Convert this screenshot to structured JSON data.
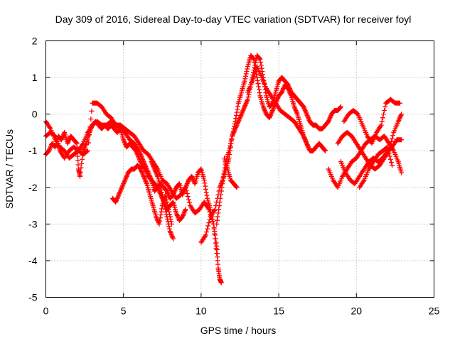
{
  "chart_data": {
    "type": "scatter",
    "title": "Day 309 of 2016, Sidereal Day-to-day VTEC variation (SDTVAR) for receiver foyl",
    "xlabel": "GPS time / hours",
    "ylabel": "SDTVAR / TECUs",
    "xlim": [
      0,
      25
    ],
    "ylim": [
      -5,
      2
    ],
    "xticks": [
      "0",
      "5",
      "10",
      "15",
      "20",
      "25"
    ],
    "yticks": [
      "2",
      "1",
      "0",
      "-1",
      "-2",
      "-3",
      "-4",
      "-5"
    ],
    "grid": true,
    "marker": "+",
    "color": "#ff0000",
    "series": [
      {
        "x": [
          0.0,
          0.2,
          0.4,
          0.6,
          0.8,
          1.0,
          1.2,
          1.4,
          1.6,
          1.8,
          2.0,
          2.1,
          2.2,
          2.4,
          2.6,
          2.8,
          3.0,
          3.2,
          3.4,
          3.6,
          3.8,
          4.0,
          4.2,
          4.4,
          4.6,
          4.8,
          5.0,
          5.2,
          5.4,
          5.6,
          5.8,
          6.0,
          6.2,
          6.4,
          6.6,
          6.8,
          7.0,
          7.2,
          7.4,
          7.6,
          7.8,
          8.0,
          8.2,
          8.4,
          8.6,
          8.8,
          9.0,
          9.2,
          9.4,
          9.6,
          9.8,
          10.0,
          10.2,
          10.4,
          10.6,
          10.8,
          11.0
        ],
        "y": [
          -1.1,
          -1.0,
          -0.8,
          -0.9,
          -0.6,
          -0.7,
          -0.5,
          -0.8,
          -0.6,
          -0.7,
          -0.8,
          -1.5,
          -1.7,
          -1.0,
          -0.8,
          -0.5,
          -0.3,
          -0.2,
          -0.3,
          -0.4,
          -0.3,
          -0.4,
          -0.3,
          -0.4,
          -0.5,
          -0.4,
          -0.7,
          -0.9,
          -0.8,
          -0.9,
          -1.0,
          -1.2,
          -1.4,
          -1.5,
          -1.7,
          -1.8,
          -2.1,
          -2.0,
          -1.9,
          -2.0,
          -2.1,
          -2.3,
          -2.2,
          -2.0,
          -1.9,
          -2.2,
          -2.0,
          -1.8,
          -1.7,
          -1.9,
          -1.6,
          -1.5,
          -1.8,
          -2.3,
          -2.6,
          -3.0,
          -3.8
        ]
      },
      {
        "x": [
          0.0,
          0.3,
          0.6,
          0.9,
          1.2,
          1.5,
          1.8,
          2.1,
          2.4,
          2.7,
          3.0,
          3.3,
          3.6,
          3.9,
          4.2,
          4.5,
          4.8,
          5.1,
          5.4,
          5.7,
          6.0,
          6.3,
          6.6,
          6.9,
          7.2,
          7.5,
          7.8,
          8.1,
          8.4,
          8.7,
          9.0,
          9.3,
          9.6,
          9.9,
          10.2,
          10.5,
          10.8,
          11.0,
          11.1,
          11.2,
          11.3
        ],
        "y": [
          -0.2,
          -0.4,
          -0.7,
          -1.0,
          -1.2,
          -1.0,
          -0.9,
          -1.0,
          -0.8,
          -0.5,
          -0.3,
          -0.2,
          -0.3,
          -0.3,
          -0.2,
          -0.3,
          -0.3,
          -0.4,
          -0.5,
          -0.6,
          -0.8,
          -1.0,
          -1.1,
          -1.3,
          -1.5,
          -1.8,
          -1.9,
          -2.1,
          -2.3,
          -2.2,
          -2.0,
          -2.5,
          -2.7,
          -2.6,
          -2.4,
          -2.6,
          -3.0,
          -3.6,
          -4.2,
          -4.5,
          -4.6
        ]
      },
      {
        "x": [
          0.0,
          0.3,
          0.6,
          0.9,
          1.2,
          1.5,
          1.8,
          2.1,
          2.4,
          2.7,
          3.0,
          3.3,
          3.6,
          3.9,
          4.2,
          4.5,
          4.8,
          5.1,
          5.4,
          5.7,
          6.0,
          6.2,
          6.4,
          6.6,
          6.8,
          7.0,
          7.2,
          7.4,
          7.6,
          7.8,
          8.0,
          8.2
        ],
        "y": [
          -0.6,
          -0.5,
          -0.6,
          -0.9,
          -1.0,
          -1.2,
          -1.1,
          -1.0,
          -1.1,
          -1.0,
          0.3,
          0.3,
          0.2,
          0.0,
          -0.1,
          -0.3,
          -0.4,
          -0.5,
          -0.7,
          -0.8,
          -1.0,
          -1.2,
          -1.4,
          -1.6,
          -1.8,
          -1.9,
          -2.0,
          -2.2,
          -2.4,
          -2.8,
          -3.2,
          -3.4
        ]
      },
      {
        "x": [
          4.3,
          4.5,
          4.7,
          4.9,
          5.1,
          5.3,
          5.5,
          5.7,
          5.9,
          6.1,
          6.3,
          6.5,
          6.7,
          6.9,
          7.1,
          7.3,
          7.5,
          7.7,
          7.9,
          8.1
        ],
        "y": [
          -2.3,
          -2.4,
          -2.2,
          -2.0,
          -1.8,
          -1.6,
          -1.5,
          -1.5,
          -1.4,
          -1.5,
          -1.7,
          -1.9,
          -2.2,
          -2.5,
          -2.8,
          -3.0,
          -2.5,
          -2.2,
          -2.6,
          -3.0
        ]
      },
      {
        "x": [
          6.8,
          7.0,
          7.2,
          7.4,
          7.6,
          7.8,
          8.0,
          8.2,
          8.4,
          8.6,
          8.8,
          9.0
        ],
        "y": [
          -1.3,
          -1.5,
          -1.7,
          -2.0,
          -2.4,
          -2.6,
          -2.5,
          -2.4,
          -2.7,
          -2.9,
          -2.8,
          -2.6
        ]
      },
      {
        "x": [
          10.0,
          10.3,
          10.6,
          10.9,
          11.2,
          11.4,
          11.6,
          11.8,
          12.0,
          12.2,
          12.4,
          12.6,
          12.8,
          13.0,
          13.2,
          13.4,
          13.6,
          13.8,
          14.0,
          14.2,
          14.4,
          14.6,
          14.8,
          15.0,
          15.2,
          15.4,
          15.6,
          15.8,
          16.0,
          16.2,
          16.4,
          16.6,
          16.8,
          17.0,
          17.2,
          17.4,
          17.6,
          17.8,
          18.0,
          18.2,
          18.4,
          18.6,
          18.8,
          19.0
        ],
        "y": [
          -3.5,
          -3.3,
          -2.8,
          -2.6,
          -2.0,
          -1.8,
          -1.3,
          -1.0,
          -0.6,
          -0.4,
          -0.2,
          0.0,
          0.2,
          0.4,
          0.8,
          1.2,
          1.6,
          1.5,
          1.0,
          0.5,
          0.2,
          0.3,
          0.6,
          0.9,
          1.0,
          0.9,
          0.8,
          0.6,
          0.5,
          0.4,
          0.3,
          0.2,
          0.0,
          -0.2,
          -0.3,
          -0.3,
          -0.4,
          -0.4,
          -0.3,
          -0.2,
          0.0,
          0.1,
          0.1,
          0.2
        ]
      },
      {
        "x": [
          11.0,
          11.2,
          11.4,
          11.6,
          11.8,
          12.0,
          12.2,
          12.4,
          12.6,
          12.8,
          13.0,
          13.2,
          13.4,
          13.6,
          13.8,
          14.0,
          14.2,
          14.4,
          14.6,
          14.8,
          15.0,
          15.2,
          15.4,
          15.6,
          15.8,
          16.0,
          16.2,
          16.4,
          16.6,
          16.8,
          17.0,
          17.2,
          17.4,
          17.6,
          17.8,
          18.0
        ],
        "y": [
          -3.0,
          -2.4,
          -1.8,
          -1.5,
          -1.2,
          -0.6,
          -0.2,
          0.3,
          0.6,
          0.9,
          1.3,
          1.6,
          1.5,
          1.0,
          0.5,
          0.2,
          0.0,
          -0.1,
          0.1,
          0.3,
          0.5,
          0.6,
          0.8,
          0.7,
          0.5,
          0.2,
          0.0,
          -0.3,
          -0.6,
          -0.8,
          -1.0,
          -1.0,
          -0.9,
          -0.8,
          -0.9,
          -1.0
        ]
      },
      {
        "x": [
          11.5,
          11.7,
          11.9,
          12.1,
          12.3
        ],
        "y": [
          -1.2,
          -1.5,
          -1.8,
          -1.9,
          -2.0
        ]
      },
      {
        "x": [
          13.0,
          13.3,
          13.6,
          13.9,
          14.2,
          14.5,
          14.8,
          15.1,
          15.4,
          15.7,
          16.0,
          16.3,
          16.6,
          16.9
        ],
        "y": [
          0.6,
          0.9,
          1.3,
          1.0,
          0.7,
          0.5,
          0.3,
          0.1,
          0.0,
          -0.1,
          -0.2,
          -0.4,
          -0.6,
          -0.9
        ]
      },
      {
        "x": [
          18.2,
          18.5,
          18.8,
          19.1,
          19.4,
          19.7,
          20.0,
          20.3,
          20.6,
          20.9,
          21.2,
          21.5,
          21.8,
          22.1,
          22.4,
          22.7,
          22.9
        ],
        "y": [
          -1.5,
          -1.8,
          -2.0,
          -1.7,
          -1.5,
          -1.3,
          -1.2,
          -1.0,
          -0.8,
          -0.7,
          -0.6,
          -0.7,
          -0.6,
          -0.8,
          -1.0,
          -1.3,
          -1.6
        ]
      },
      {
        "x": [
          18.8,
          19.1,
          19.4,
          19.7,
          20.0,
          20.3,
          20.6,
          20.9,
          21.2,
          21.5,
          21.8,
          22.1,
          22.4,
          22.7,
          22.9
        ],
        "y": [
          -0.8,
          -0.6,
          -0.5,
          -0.6,
          -0.8,
          -1.0,
          -1.2,
          -1.4,
          -1.5,
          -1.4,
          -1.2,
          -1.0,
          -0.5,
          -0.2,
          0.0
        ]
      },
      {
        "x": [
          19.0,
          19.3,
          19.6,
          19.9,
          20.2,
          20.5,
          20.8,
          21.1,
          21.4,
          21.7,
          22.0,
          22.3,
          22.6,
          22.9
        ],
        "y": [
          -1.3,
          -1.6,
          -1.8,
          -1.9,
          -1.7,
          -1.5,
          -1.3,
          -1.2,
          -1.3,
          -1.2,
          -1.0,
          -0.9,
          -0.7,
          -0.7
        ]
      },
      {
        "x": [
          19.2,
          19.5,
          19.8,
          20.1,
          20.4,
          20.7,
          21.0,
          21.3,
          21.6,
          21.9,
          22.2,
          22.5,
          22.8
        ],
        "y": [
          -0.2,
          0.0,
          0.1,
          0.0,
          -0.3,
          -0.6,
          -0.8,
          -0.5,
          -0.3,
          0.3,
          0.4,
          0.3,
          0.3
        ]
      },
      {
        "x": [
          20.2,
          20.5,
          20.8,
          21.1,
          21.4,
          21.7,
          22.0,
          22.3
        ],
        "y": [
          -2.0,
          -1.8,
          -1.5,
          -1.3,
          -1.1,
          -1.0,
          -0.9,
          -1.4
        ]
      }
    ]
  }
}
